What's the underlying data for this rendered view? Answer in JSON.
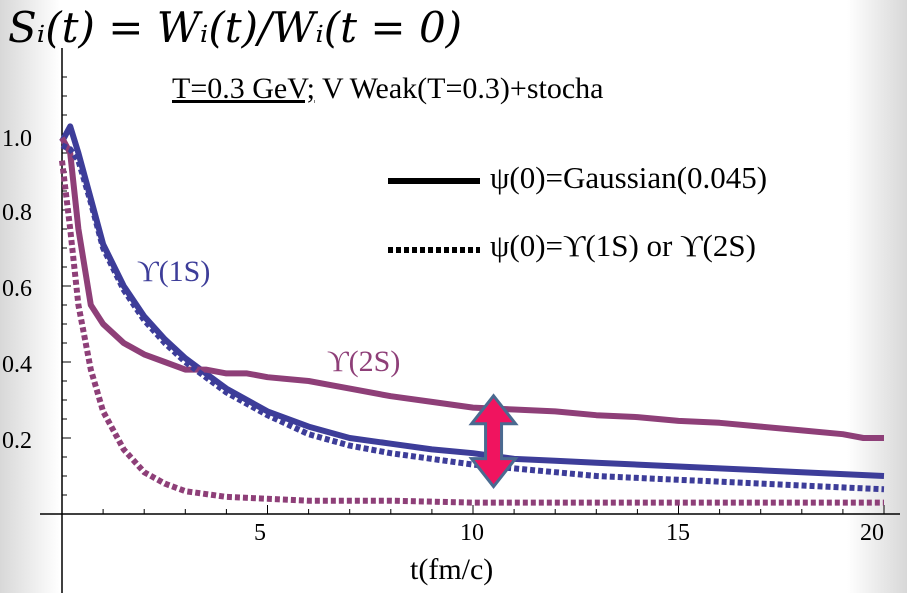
{
  "formula": "Sᵢ(t) = Wᵢ(t)/Wᵢ(t = 0)",
  "subtitle": {
    "underlined": "T=0.3 GeV;",
    "rest": "V Weak(T=0.3)+stocha"
  },
  "legend": {
    "solid": "ψ(0)=Gaussian(0.045)",
    "dotted": "ψ(0)=ϒ(1S) or ϒ(2S)"
  },
  "colors": {
    "ups1s": "#3d3d99",
    "ups2s": "#8e3f78",
    "arrow_fill": "#f0145f",
    "arrow_stroke": "#4a6a90"
  },
  "chart_data": {
    "type": "line",
    "title": "Sᵢ(t) = Wᵢ(t)/Wᵢ(t = 0)",
    "xlabel": "t(fm/c)",
    "ylabel": "",
    "xlim": [
      0,
      20
    ],
    "ylim": [
      0,
      1.2
    ],
    "x_ticks": [
      "5",
      "10",
      "15",
      "20"
    ],
    "y_ticks": [
      "0.2",
      "0.4",
      "0.6",
      "0.8",
      "1.0"
    ],
    "series": [
      {
        "name": "ϒ(1S)",
        "style": "solid",
        "x": [
          0,
          0.2,
          0.4,
          0.7,
          1,
          1.5,
          2,
          2.5,
          3,
          3.5,
          4,
          5,
          6,
          7,
          8,
          9,
          10,
          11,
          12,
          13,
          14,
          15,
          16,
          17,
          18,
          19,
          20
        ],
        "y": [
          0.98,
          1.02,
          0.95,
          0.83,
          0.71,
          0.6,
          0.52,
          0.46,
          0.41,
          0.37,
          0.33,
          0.27,
          0.23,
          0.2,
          0.185,
          0.17,
          0.16,
          0.145,
          0.14,
          0.135,
          0.13,
          0.125,
          0.12,
          0.115,
          0.11,
          0.105,
          0.1
        ]
      },
      {
        "name": "ϒ(2S)",
        "style": "solid",
        "x": [
          0,
          0.2,
          0.4,
          0.7,
          1,
          1.5,
          2,
          2.5,
          3,
          3.5,
          4,
          4.5,
          5,
          6,
          7,
          8,
          9,
          10,
          11,
          12,
          13,
          14,
          15,
          16,
          17,
          18,
          19,
          19.5,
          20
        ],
        "y": [
          0.99,
          0.95,
          0.75,
          0.55,
          0.5,
          0.45,
          0.42,
          0.4,
          0.38,
          0.38,
          0.37,
          0.37,
          0.36,
          0.35,
          0.33,
          0.31,
          0.295,
          0.28,
          0.275,
          0.27,
          0.26,
          0.255,
          0.245,
          0.24,
          0.23,
          0.22,
          0.21,
          0.2,
          0.2
        ]
      },
      {
        "name": "ϒ(1S) dotted",
        "style": "dotted",
        "x": [
          0,
          0.2,
          0.4,
          0.7,
          1,
          1.5,
          2,
          2.5,
          3,
          3.5,
          4,
          5,
          6,
          7,
          8,
          9,
          10,
          11,
          12,
          13,
          14,
          15,
          16,
          17,
          18,
          19,
          20
        ],
        "y": [
          0.97,
          0.96,
          0.93,
          0.82,
          0.7,
          0.59,
          0.51,
          0.45,
          0.4,
          0.36,
          0.32,
          0.26,
          0.21,
          0.18,
          0.16,
          0.145,
          0.13,
          0.12,
          0.11,
          0.1,
          0.095,
          0.09,
          0.085,
          0.08,
          0.075,
          0.07,
          0.065
        ]
      },
      {
        "name": "ϒ(2S) dotted",
        "style": "dotted",
        "x": [
          0,
          0.2,
          0.4,
          0.7,
          1,
          1.5,
          2,
          2.5,
          3,
          4,
          5,
          6,
          8,
          10,
          12,
          14,
          16,
          18,
          20
        ],
        "y": [
          0.93,
          0.75,
          0.55,
          0.38,
          0.27,
          0.17,
          0.11,
          0.08,
          0.06,
          0.045,
          0.04,
          0.035,
          0.035,
          0.03,
          0.03,
          0.03,
          0.03,
          0.03,
          0.03
        ]
      }
    ],
    "annotation": {
      "type": "double-arrow",
      "x": 10.5,
      "y_from": 0.03,
      "y_to": 0.29
    }
  }
}
